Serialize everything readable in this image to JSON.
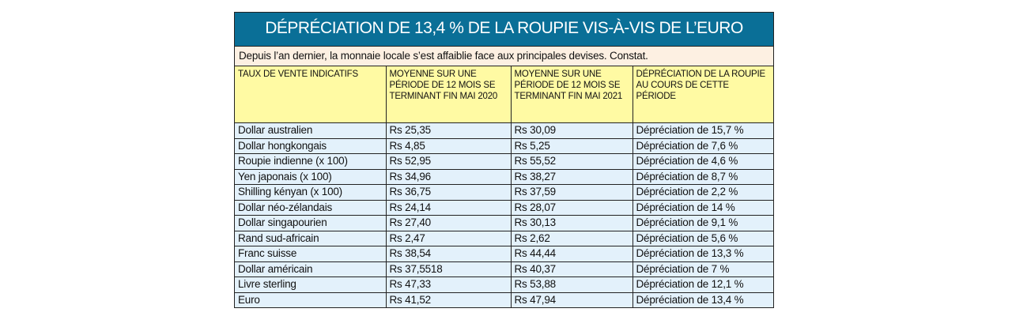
{
  "title": "DÉPRÉCIATION DE 13,4 % DE LA ROUPIE VIS-À-VIS DE L’EURO",
  "subtitle": "Depuis l’an dernier, la monnaie locale s’est affaiblie face aux principales devises. Constat.",
  "colors": {
    "title_bg": "#0a6f97",
    "subtitle_bg": "#fdf0e2",
    "header_bg": "#fffaa3",
    "row_bg": "#e3f1fb"
  },
  "headers": [
    "TAUX DE VENTE INDICATIFS",
    "MOYENNE SUR UNE PÉRIODE DE 12 MOIS SE TERMINANT FIN MAI 2020",
    "MOYENNE SUR UNE PÉRIODE DE 12 MOIS SE TERMINANT FIN MAI 2021",
    "DÉPRÉCIATION DE LA ROUPIE AU COURS DE CETTE PÉRIODE"
  ],
  "rows": [
    [
      "Dollar australien",
      "Rs 25,35",
      "Rs 30,09",
      "Dépréciation de 15,7 %"
    ],
    [
      "Dollar hongkongais",
      "Rs 4,85",
      "Rs 5,25",
      "Dépréciation de 7,6 %"
    ],
    [
      "Roupie indienne (x 100)",
      "Rs 52,95",
      "Rs 55,52",
      "Dépréciation de 4,6 %"
    ],
    [
      "Yen japonais (x 100)",
      "Rs 34,96",
      "Rs 38,27",
      "Dépréciation de 8,7 %"
    ],
    [
      "Shilling kényan (x 100)",
      "Rs 36,75",
      "Rs 37,59",
      "Dépréciation de 2,2 %"
    ],
    [
      "Dollar néo-zélandais",
      "Rs 24,14",
      "Rs 28,07",
      "Dépréciation de 14 %"
    ],
    [
      "Dollar singapourien",
      "Rs 27,40",
      "Rs 30,13",
      "Dépréciation de 9,1 %"
    ],
    [
      "Rand sud-africain",
      "Rs 2,47",
      "Rs 2,62",
      "Dépréciation de 5,6 %"
    ],
    [
      "Franc suisse",
      "Rs 38,54",
      "Rs 44,44",
      "Dépréciation de 13,3 %"
    ],
    [
      "Dollar américain",
      "Rs 37,5518",
      "Rs 40,37",
      "Dépréciation de 7 %"
    ],
    [
      "Livre sterling",
      "Rs 47,33",
      "Rs 53,88",
      "Dépréciation de 12,1 %"
    ],
    [
      "Euro",
      "Rs 41,52",
      "Rs 47,94",
      "Dépréciation de 13,4 %"
    ]
  ]
}
